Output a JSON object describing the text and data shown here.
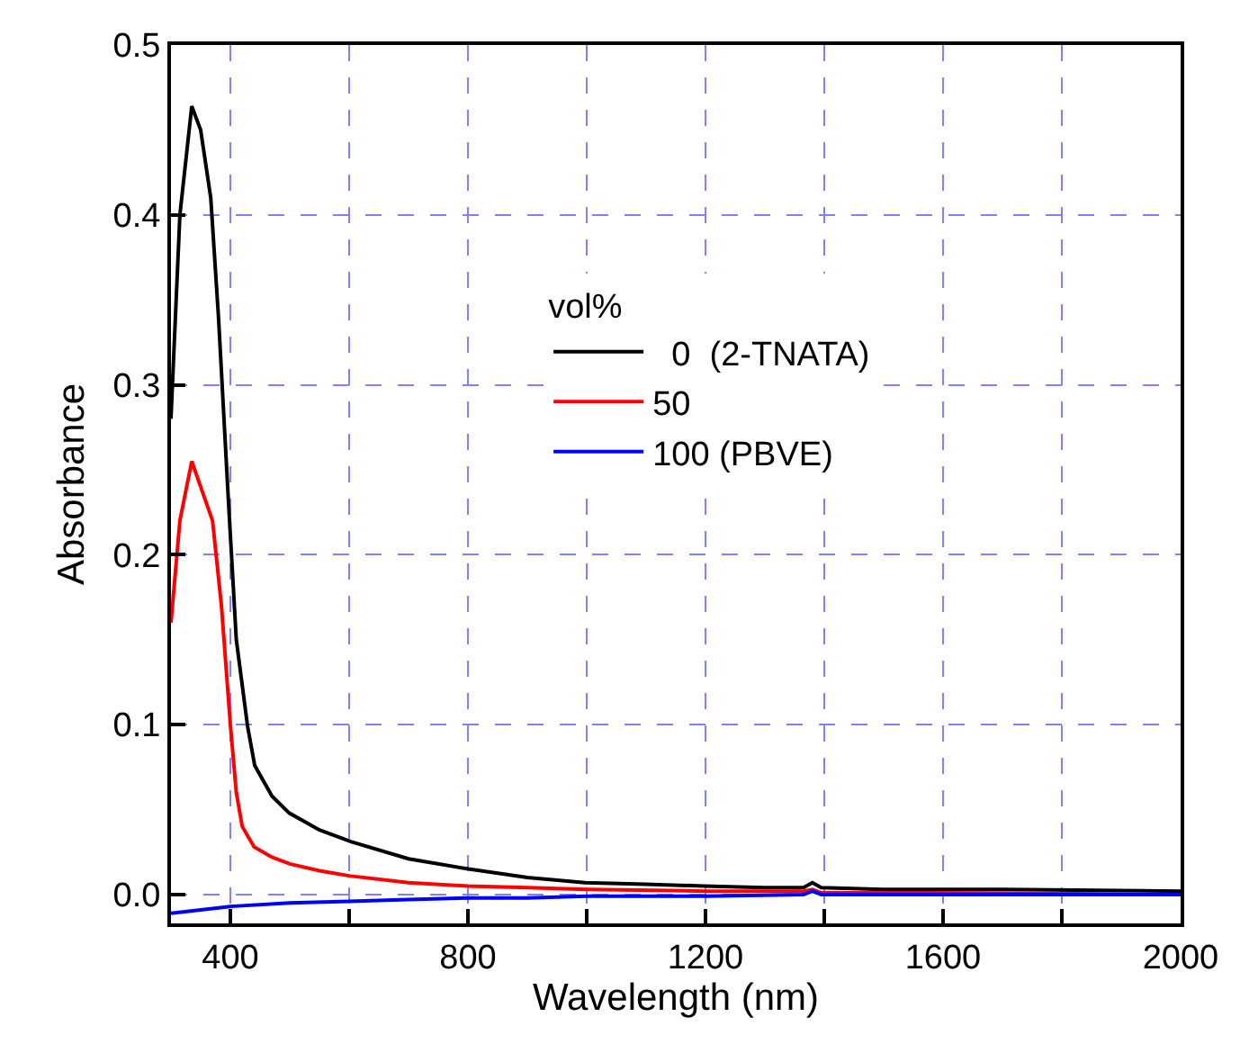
{
  "chart_data": {
    "type": "line",
    "xlabel": "Wavelength (nm)",
    "ylabel": "Absorbance",
    "legend_title": "vol%",
    "xlim": [
      300,
      2000
    ],
    "xticks": [
      400,
      {
        "value": 600,
        "label": null
      },
      800,
      {
        "value": 1000,
        "label": null
      },
      1200,
      {
        "value": 1400,
        "label": null
      },
      1600,
      {
        "value": 1800,
        "label": null
      },
      2000
    ],
    "ylim": [
      -0.017,
      0.5
    ],
    "yticks": [
      {
        "value": 0.0,
        "label": "0.0"
      },
      0.1,
      0.2,
      0.3,
      0.4,
      0.5
    ],
    "grid": true,
    "legend": "top right",
    "marker": "none",
    "line_style": "solid",
    "series": [
      {
        "name": "  0  (2-TNATA)",
        "color": "#000000",
        "x": [
          300,
          315,
          335,
          350,
          367,
          380,
          397,
          410,
          429,
          441,
          470,
          499,
          550,
          604,
          700,
          801,
          900,
          997,
          1100,
          1197,
          1300,
          1365,
          1380,
          1395,
          1500,
          1700,
          2000
        ],
        "values": [
          0.28,
          0.4,
          0.464,
          0.45,
          0.41,
          0.34,
          0.23,
          0.15,
          0.099,
          0.076,
          0.058,
          0.048,
          0.038,
          0.031,
          0.021,
          0.015,
          0.01,
          0.007,
          0.006,
          0.005,
          0.004,
          0.004,
          0.007,
          0.004,
          0.003,
          0.003,
          0.002
        ]
      },
      {
        "name": "50",
        "color": "#ff0000",
        "x": [
          300,
          315,
          335,
          350,
          370,
          385,
          400,
          410,
          420,
          440,
          470,
          500,
          550,
          600,
          700,
          800,
          900,
          1000,
          1200,
          1365,
          1380,
          1395,
          1600,
          2000
        ],
        "values": [
          0.16,
          0.22,
          0.255,
          0.24,
          0.22,
          0.17,
          0.1,
          0.06,
          0.04,
          0.028,
          0.022,
          0.018,
          0.014,
          0.011,
          0.007,
          0.005,
          0.004,
          0.003,
          0.002,
          0.002,
          0.003,
          0.001,
          0.001,
          0.0
        ]
      },
      {
        "name": "100 (PBVE)",
        "color": "#0000ff",
        "x": [
          300,
          350,
          400,
          500,
          600,
          700,
          800,
          900,
          1000,
          1200,
          1365,
          1380,
          1395,
          1600,
          2000
        ],
        "values": [
          -0.011,
          -0.009,
          -0.007,
          -0.005,
          -0.004,
          -0.003,
          -0.002,
          -0.002,
          -0.001,
          -0.001,
          0.0,
          0.002,
          0.0,
          0.0,
          0.0
        ]
      }
    ]
  }
}
